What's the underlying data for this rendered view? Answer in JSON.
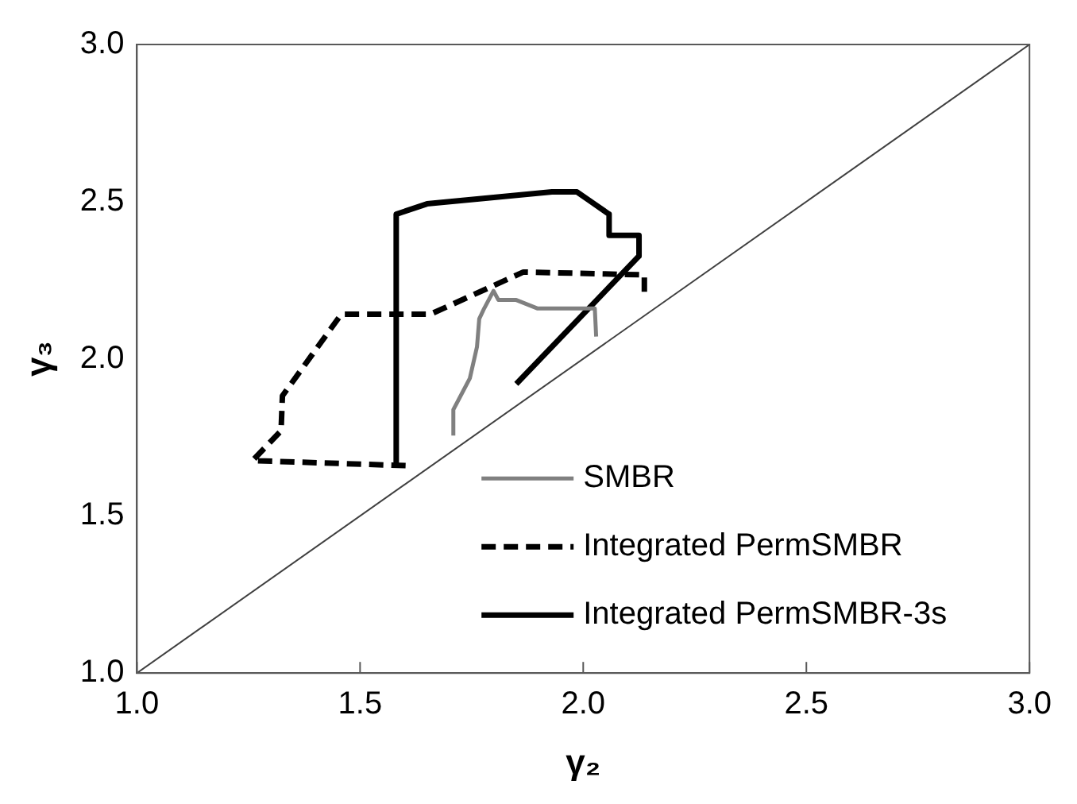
{
  "chart_data": {
    "type": "line",
    "xlabel": "γ₂",
    "ylabel": "γ₃",
    "xlim": [
      1.0,
      3.0
    ],
    "ylim": [
      1.0,
      3.0
    ],
    "xticks": [
      {
        "value": 1,
        "label": "1.0"
      },
      {
        "value": 1.5,
        "label": "1.5"
      },
      {
        "value": 2,
        "label": "2.0"
      },
      {
        "value": 2.5,
        "label": "2.5"
      },
      {
        "value": 3,
        "label": "3.0"
      }
    ],
    "yticks": [
      {
        "value": 1,
        "label": "1.0"
      },
      {
        "value": 1.5,
        "label": "1.5"
      },
      {
        "value": 2,
        "label": "2.0"
      },
      {
        "value": 2.5,
        "label": "2.5"
      },
      {
        "value": 3,
        "label": "3.0"
      }
    ],
    "grid": false,
    "legend": "bottom right",
    "marker": "none",
    "series": [
      {
        "name": "SMBR",
        "color": "#808080",
        "line_style": "solid",
        "x": [
          1.709,
          1.709,
          1.746,
          1.762,
          1.767,
          1.778,
          1.799,
          1.81,
          1.85,
          1.898,
          2.026,
          2.029
        ],
        "values": [
          1.756,
          1.838,
          1.938,
          2.038,
          2.127,
          2.16,
          2.216,
          2.187,
          2.187,
          2.16,
          2.16,
          2.071
        ]
      },
      {
        "name": "Integrated PermSMBR",
        "color": "#000000",
        "line_style": "dashed",
        "x": [
          1.602,
          1.259,
          1.323,
          1.326,
          1.458,
          1.658,
          1.866,
          2.137,
          2.137
        ],
        "values": [
          1.66,
          1.676,
          1.771,
          1.882,
          2.142,
          2.142,
          2.276,
          2.267,
          2.209
        ]
      },
      {
        "name": "Integrated PermSMBR-3s",
        "color": "#000000",
        "line_style": "solid",
        "x": [
          1.581,
          1.581,
          1.65,
          1.93,
          1.986,
          2.058,
          2.058,
          2.125,
          2.125,
          1.85
        ],
        "values": [
          1.653,
          2.46,
          2.493,
          2.531,
          2.531,
          2.46,
          2.393,
          2.393,
          2.327,
          1.92
        ]
      },
      {
        "color": "#404040",
        "line_style": "solid",
        "x": [
          1.0,
          3.0
        ],
        "values": [
          1.0,
          3.0
        ]
      }
    ]
  }
}
